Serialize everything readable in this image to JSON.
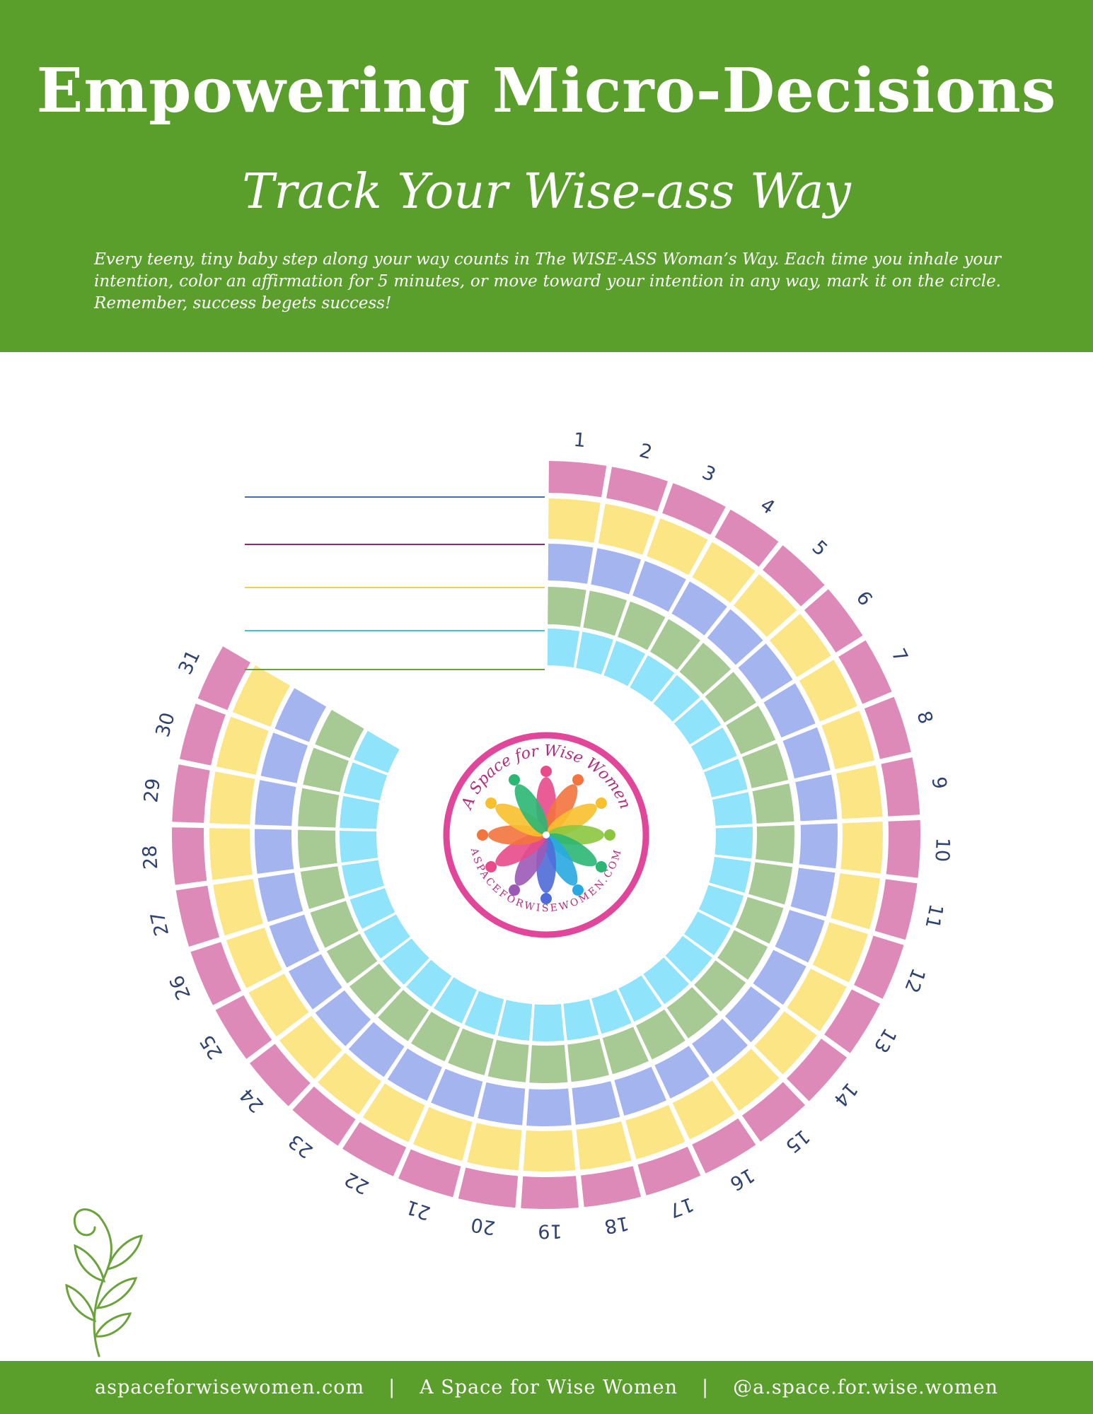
{
  "header": {
    "title": "Empowering Micro-Decisions",
    "subtitle": "Track Your Wise-ass Way",
    "intro": "Every teeny, tiny baby step along your way counts in The WISE-ASS Woman’s Way. Each time you inhale your intention, color an affirmation for 5 minutes, or move toward your intention in any way, mark it on the circle. Remember, success begets success!"
  },
  "tracker": {
    "days": [
      "1",
      "2",
      "3",
      "4",
      "5",
      "6",
      "7",
      "8",
      "9",
      "10",
      "11",
      "12",
      "13",
      "14",
      "15",
      "16",
      "17",
      "18",
      "19",
      "20",
      "21",
      "22",
      "23",
      "24",
      "25",
      "26",
      "27",
      "28",
      "29",
      "30",
      "31"
    ],
    "ring_colors": [
      "#dd8ab8",
      "#fce585",
      "#a4b4ef",
      "#a7c994",
      "#8fe3fb"
    ],
    "line_colors": [
      "#3f6fae",
      "#8a2a6b",
      "#f1cf4b",
      "#46c2d6",
      "#6f9e3c"
    ],
    "label_color": "#2f4270"
  },
  "logo": {
    "text_top": "A Space for Wise Women",
    "text_bottom": "ASPACEFORWISEWOMEN.COM",
    "ring_color": "#e2469a"
  },
  "footer": {
    "website": "aspaceforwisewomen.com",
    "separator": "|",
    "name": "A Space for Wise Women",
    "handle": "@a.space.for.wise.women"
  },
  "decoration": {
    "sprig_color": "#6aa33a"
  }
}
